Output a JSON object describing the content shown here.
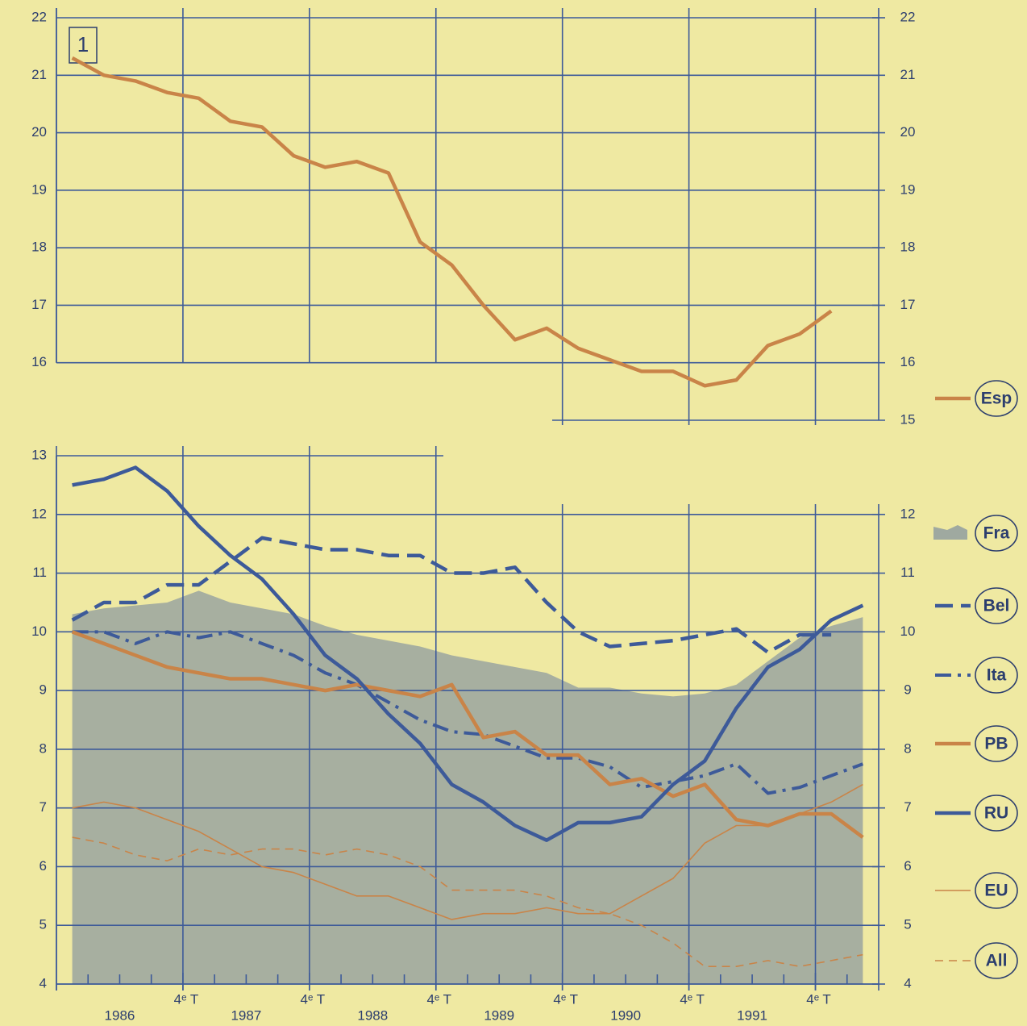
{
  "chart_data": [
    {
      "type": "line",
      "panel_label": "1",
      "x": [
        1986.125,
        1986.375,
        1986.625,
        1986.875,
        1987.125,
        1987.375,
        1987.625,
        1987.875,
        1988.125,
        1988.375,
        1988.625,
        1988.875,
        1989.125,
        1989.375,
        1989.625,
        1989.875,
        1990.125,
        1990.375,
        1990.625,
        1990.875,
        1991.125,
        1991.375,
        1991.625,
        1991.875,
        1992.125
      ],
      "series": [
        {
          "name": "Esp",
          "color": "#c98448",
          "width": 4.5,
          "dash": "none",
          "values": [
            21.3,
            21.0,
            20.9,
            20.7,
            20.6,
            20.2,
            20.1,
            19.6,
            19.4,
            19.5,
            19.3,
            18.1,
            17.7,
            17.0,
            16.4,
            16.6,
            16.25,
            16.05,
            15.85,
            15.85,
            15.6,
            15.7,
            16.3,
            16.5,
            16.9
          ]
        }
      ],
      "xlim": [
        1986,
        1992.5
      ],
      "ylim": [
        15,
        22
      ],
      "yticks": [
        16,
        17,
        18,
        19,
        20,
        21,
        22
      ],
      "y2lim": [
        15,
        22
      ],
      "y2ticks": [
        15,
        16,
        17,
        18,
        19,
        20,
        21,
        22
      ],
      "grid": true
    },
    {
      "type": "line",
      "x": [
        1986.125,
        1986.375,
        1986.625,
        1986.875,
        1987.125,
        1987.375,
        1987.625,
        1987.875,
        1988.125,
        1988.375,
        1988.625,
        1988.875,
        1989.125,
        1989.375,
        1989.625,
        1989.875,
        1990.125,
        1990.375,
        1990.625,
        1990.875,
        1991.125,
        1991.375,
        1991.625,
        1991.875,
        1992.125,
        1992.375
      ],
      "series": [
        {
          "name": "Fra",
          "style": "area",
          "color": "#9fa9a0",
          "values": [
            10.3,
            10.4,
            10.45,
            10.5,
            10.7,
            10.5,
            10.4,
            10.3,
            10.1,
            9.95,
            9.85,
            9.75,
            9.6,
            9.5,
            9.4,
            9.3,
            9.05,
            9.05,
            8.95,
            8.9,
            8.95,
            9.1,
            9.5,
            9.9,
            10.1,
            10.25
          ]
        },
        {
          "name": "Bel",
          "color": "#3d5a99",
          "width": 4.5,
          "dash": "22 10",
          "values": [
            10.2,
            10.5,
            10.5,
            10.8,
            10.8,
            11.2,
            11.6,
            11.5,
            11.4,
            11.4,
            11.3,
            11.3,
            11.0,
            11.0,
            11.1,
            10.5,
            10.0,
            9.75,
            9.8,
            9.85,
            9.95,
            10.05,
            9.65,
            9.95,
            9.95,
            null
          ]
        },
        {
          "name": "Ita",
          "color": "#3d5a99",
          "width": 4,
          "dash": "20 8 4 8",
          "values": [
            10.0,
            10.0,
            9.8,
            10.0,
            9.9,
            10.0,
            9.8,
            9.6,
            9.3,
            9.1,
            8.8,
            8.5,
            8.3,
            8.25,
            8.05,
            7.85,
            7.85,
            7.7,
            7.35,
            7.45,
            7.55,
            7.75,
            7.25,
            7.35,
            7.55,
            7.75
          ]
        },
        {
          "name": "PB",
          "color": "#c98448",
          "width": 4.5,
          "dash": "none",
          "values": [
            10.0,
            9.8,
            9.6,
            9.4,
            9.3,
            9.2,
            9.2,
            9.1,
            9.0,
            9.1,
            9.0,
            8.9,
            9.1,
            8.2,
            8.3,
            7.9,
            7.9,
            7.4,
            7.5,
            7.2,
            7.4,
            6.8,
            6.7,
            6.9,
            6.9,
            6.5
          ]
        },
        {
          "name": "RU",
          "color": "#3d5a99",
          "width": 4.5,
          "dash": "none",
          "values": [
            12.5,
            12.6,
            12.8,
            12.4,
            11.8,
            11.3,
            10.9,
            10.3,
            9.6,
            9.2,
            8.6,
            8.1,
            7.4,
            7.1,
            6.7,
            6.45,
            6.75,
            6.75,
            6.85,
            7.4,
            7.8,
            8.7,
            9.4,
            9.7,
            10.2,
            10.45
          ]
        },
        {
          "name": "EU",
          "color": "#c98448",
          "width": 1.6,
          "dash": "none",
          "values": [
            7.0,
            7.1,
            7.0,
            6.8,
            6.6,
            6.3,
            6.0,
            5.9,
            5.7,
            5.5,
            5.5,
            5.3,
            5.1,
            5.2,
            5.2,
            5.3,
            5.2,
            5.2,
            5.5,
            5.8,
            6.4,
            6.7,
            6.7,
            6.9,
            7.1,
            7.4
          ]
        },
        {
          "name": "All",
          "color": "#c98448",
          "width": 1.6,
          "dash": "10 7",
          "values": [
            6.5,
            6.4,
            6.2,
            6.1,
            6.3,
            6.2,
            6.3,
            6.3,
            6.2,
            6.3,
            6.2,
            6.0,
            5.6,
            5.6,
            5.6,
            5.5,
            5.3,
            5.2,
            5.0,
            4.7,
            4.3,
            4.3,
            4.4,
            4.3,
            4.4,
            4.5
          ]
        }
      ],
      "xlim": [
        1986,
        1992.5
      ],
      "xticks": [
        {
          "value": 1987,
          "label": "4ᵉ T"
        },
        {
          "value": 1988,
          "label": "4ᵉ T"
        },
        {
          "value": 1989,
          "label": "4ᵉ T"
        },
        {
          "value": 1990,
          "label": "4ᵉ T"
        },
        {
          "value": 1991,
          "label": "4ᵉ T"
        },
        {
          "value": 1992,
          "label": "4ᵉ T"
        }
      ],
      "x_minor_ticks": [
        1986.25,
        1986.5,
        1986.75,
        1987.25,
        1987.5,
        1987.75,
        1988.25,
        1988.5,
        1988.75,
        1989.25,
        1989.5,
        1989.75,
        1990.25,
        1990.5,
        1990.75,
        1991.25,
        1991.5,
        1991.75,
        1992.25
      ],
      "year_labels": [
        {
          "value": 1986.5,
          "label": "1986"
        },
        {
          "value": 1987.5,
          "label": "1987"
        },
        {
          "value": 1988.5,
          "label": "1988"
        },
        {
          "value": 1989.5,
          "label": "1989"
        },
        {
          "value": 1990.5,
          "label": "1990"
        },
        {
          "value": 1991.5,
          "label": "1991"
        }
      ],
      "ylim": [
        4,
        13
      ],
      "yticks": [
        4,
        5,
        6,
        7,
        8,
        9,
        10,
        11,
        12,
        13
      ],
      "y2lim": [
        4,
        13
      ],
      "y2ticks": [
        4,
        5,
        6,
        7,
        8,
        9,
        10,
        11,
        12
      ],
      "grid": true
    }
  ]
}
